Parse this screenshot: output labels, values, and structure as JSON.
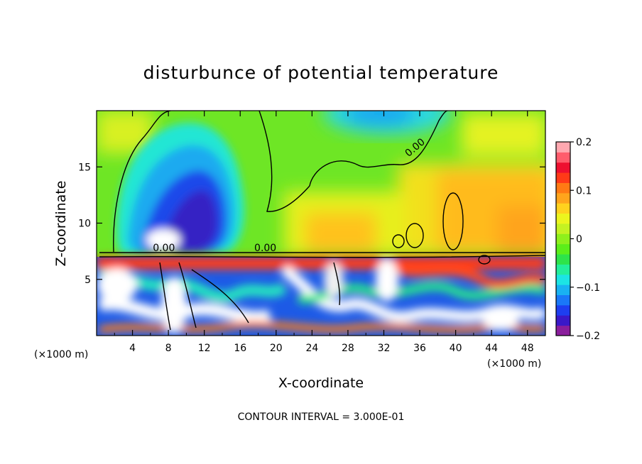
{
  "chart_data": {
    "type": "heatmap",
    "title": "disturbunce of potential temperature",
    "xlabel": "X-coordinate",
    "ylabel": "Z-coordinate",
    "x_unit": "(×1000 m)",
    "y_unit": "(×1000 m)",
    "xlim": [
      0,
      50
    ],
    "ylim": [
      0,
      20
    ],
    "xticks": [
      4,
      8,
      12,
      16,
      20,
      24,
      28,
      32,
      36,
      40,
      44,
      48
    ],
    "yticks": [
      5,
      10,
      15
    ],
    "colorbar": {
      "range": [
        -0.2,
        0.2
      ],
      "ticks": [
        {
          "value": 0.2,
          "label": "0.2"
        },
        {
          "value": 0.1,
          "label": "0.1"
        },
        {
          "value": 0,
          "label": "0"
        },
        {
          "value": -0.1,
          "label": "−0.1"
        },
        {
          "value": -0.2,
          "label": "−0.2"
        }
      ],
      "colors": [
        "#8a1e9c",
        "#3a18c8",
        "#1e3ef0",
        "#1a78f8",
        "#19b2f2",
        "#1ce4e4",
        "#23ee9b",
        "#2ee34a",
        "#5bee1a",
        "#8ef01c",
        "#c4f222",
        "#ecf51e",
        "#ffd21e",
        "#ffa51c",
        "#ff7a14",
        "#ff3a18",
        "#ee1030",
        "#ff5c6c",
        "#ffa8b0"
      ]
    },
    "contour_labels": [
      {
        "text": "0.00",
        "x": 35.7,
        "y": 16.5
      },
      {
        "text": "0.00",
        "x": 7.5,
        "y": 7.5
      },
      {
        "text": "0.00",
        "x": 18.8,
        "y": 7.5
      }
    ],
    "features": [
      {
        "kind": "upper-level negative anomaly",
        "x": 10.5,
        "z": 12,
        "value": -0.16
      },
      {
        "kind": "upper-level negative anomaly",
        "x": 32,
        "z": 19,
        "value": -0.08
      },
      {
        "kind": "upper-right positive anomaly",
        "x": 45,
        "z": 12,
        "value": 0.12
      },
      {
        "kind": "mid positive band",
        "x": 27,
        "z": 9,
        "value": 0.1
      },
      {
        "kind": "low-level turbulent layer",
        "zmin": 0,
        "zmax": 7,
        "values": "±0.3"
      }
    ],
    "contour_interval": "CONTOUR INTERVAL = 3.000E-01"
  }
}
